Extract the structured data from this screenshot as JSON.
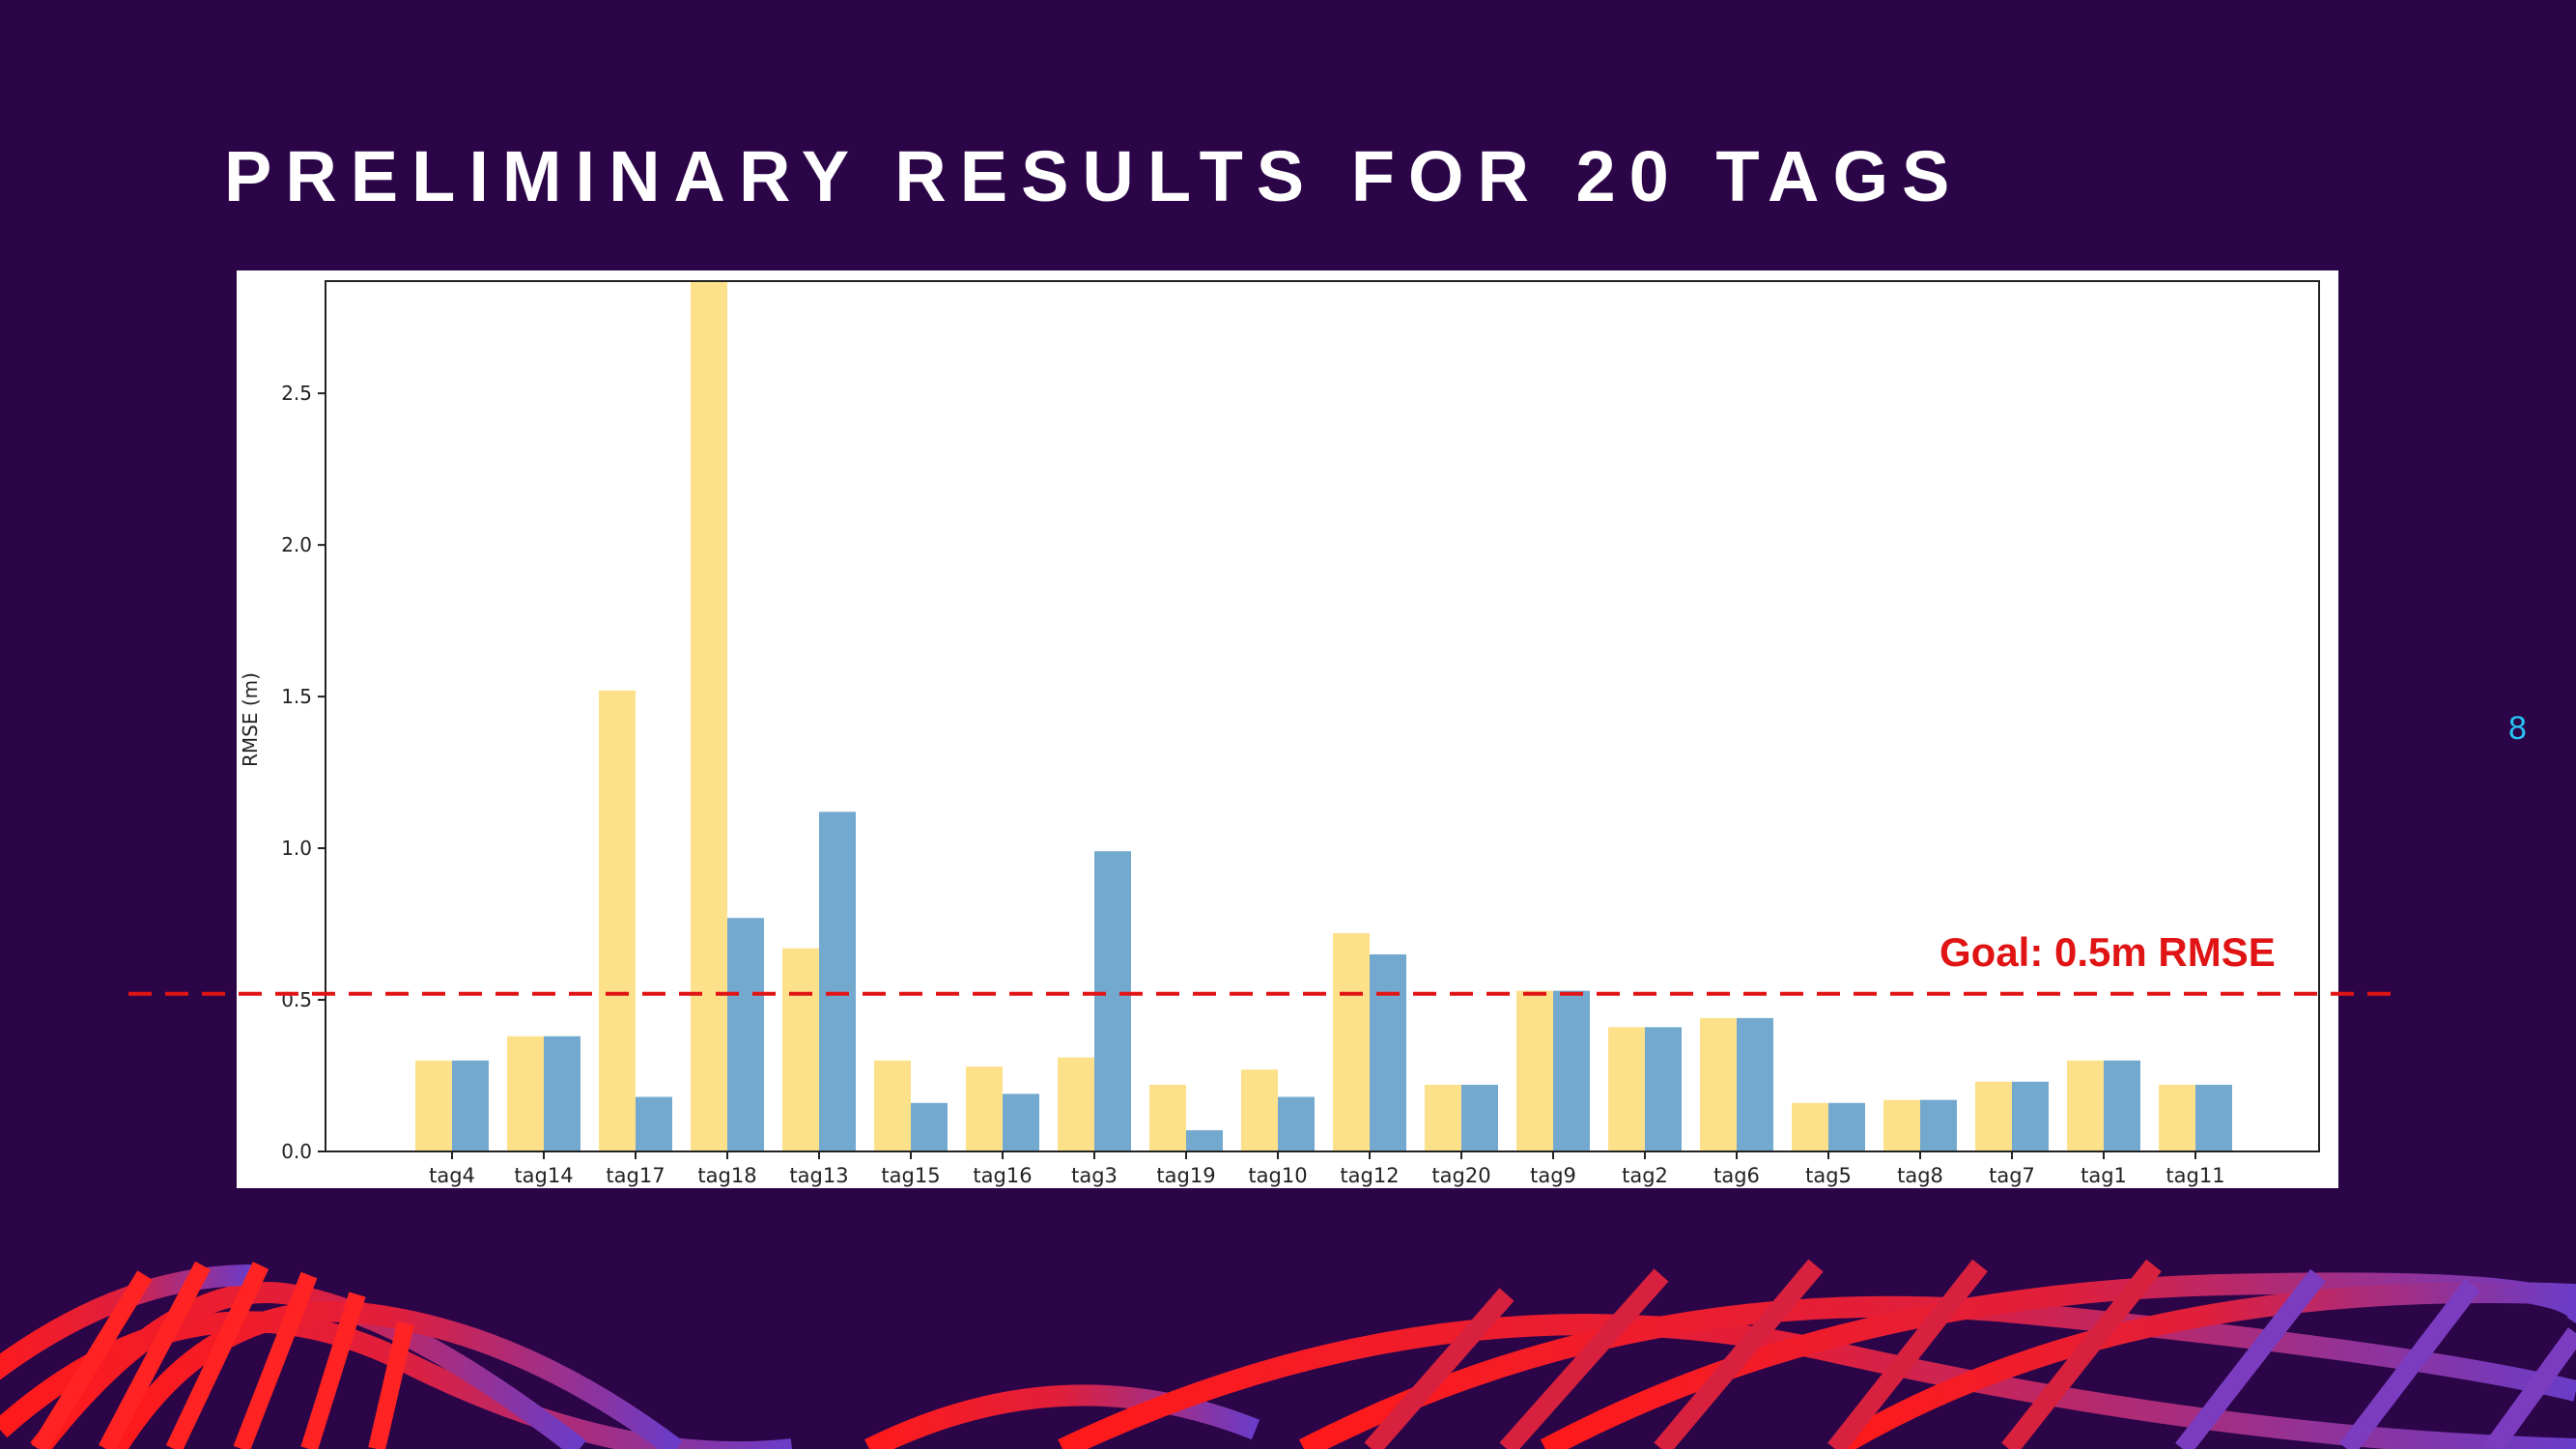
{
  "slide": {
    "title": "PRELIMINARY RESULTS FOR 20 TAGS",
    "number": "8",
    "background": "#2b0548",
    "goal_label": "Goal: 0.5m RMSE"
  },
  "chart_data": {
    "type": "bar",
    "title": "",
    "xlabel": "",
    "ylabel": "RMSE (m)",
    "ylim": [
      0,
      2.87
    ],
    "yticks": [
      0.0,
      0.5,
      1.0,
      1.5,
      2.0,
      2.5
    ],
    "ytick_labels": [
      "0.0",
      "0.5",
      "1.0",
      "1.5",
      "2.0",
      "2.5"
    ],
    "grid": false,
    "categories": [
      "tag4",
      "tag14",
      "tag17",
      "tag18",
      "tag13",
      "tag15",
      "tag16",
      "tag3",
      "tag19",
      "tag10",
      "tag12",
      "tag20",
      "tag9",
      "tag2",
      "tag6",
      "tag5",
      "tag8",
      "tag7",
      "tag1",
      "tag11"
    ],
    "series": [
      {
        "color": "#fde08a",
        "values": [
          0.3,
          0.38,
          1.52,
          2.87,
          0.67,
          0.3,
          0.28,
          0.31,
          0.22,
          0.27,
          0.72,
          0.22,
          0.53,
          0.41,
          0.44,
          0.16,
          0.17,
          0.23,
          0.3,
          0.22
        ]
      },
      {
        "color": "#74a9cf",
        "values": [
          0.3,
          0.38,
          0.18,
          0.77,
          1.12,
          0.16,
          0.19,
          0.99,
          0.07,
          0.18,
          0.65,
          0.22,
          0.53,
          0.41,
          0.44,
          0.16,
          0.17,
          0.23,
          0.3,
          0.22
        ]
      }
    ],
    "reference_line": {
      "value": 0.52,
      "color": "#e01414",
      "style": "dashed"
    }
  }
}
